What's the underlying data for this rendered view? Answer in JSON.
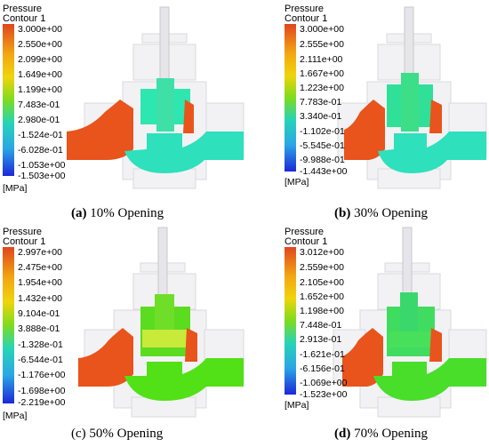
{
  "legend_colors": [
    "#e0461e",
    "#f07a1a",
    "#f2a812",
    "#f0d40a",
    "#c8e60e",
    "#7ddc1e",
    "#36d66a",
    "#26d4b6",
    "#2aa6e6",
    "#2656e6",
    "#1c28d8"
  ],
  "fluid": {
    "inlet": "#e8541c",
    "outlet_a": "#2ee0bc",
    "outlet_b": "#2ee0bc",
    "outlet_c": "#52e016",
    "outlet_d": "#48de2a",
    "core_a": "#2ee6b0",
    "core_b": "#30e098",
    "core_c": "#5cdc20",
    "core_d": "#40dc60",
    "plug_c": "#c8ea3a",
    "plug_d": "#48e05a"
  },
  "panels": [
    {
      "legend_title": "Pressure",
      "legend_subtitle": "Contour 1",
      "ticks": [
        "3.000e+00",
        "2.550e+00",
        "2.099e+00",
        "1.649e+00",
        "1.199e+00",
        "7.483e-01",
        "2.980e-01",
        "-1.524e-01",
        "-6.028e-01",
        "-1.053e+00",
        "-1.503e+00"
      ],
      "unit": "[MPa]",
      "caption_letter": "(a)",
      "caption_text": " 10% Opening",
      "letter_bold": true
    },
    {
      "legend_title": "Pressure",
      "legend_subtitle": "Contour 1",
      "ticks": [
        "3.000e+00",
        "2.555e+00",
        "2.111e+00",
        "1.667e+00",
        "1.223e+00",
        "7.783e-01",
        "3.340e-01",
        "-1.102e-01",
        "-5.545e-01",
        "-9.988e-01",
        "-1.443e+00"
      ],
      "unit": "[MPa]",
      "caption_letter": "(b)",
      "caption_text": " 30% Opening",
      "letter_bold": true
    },
    {
      "legend_title": "Pressure",
      "legend_subtitle": "Contour 1",
      "ticks": [
        "2.997e+00",
        "2.475e+00",
        "1.954e+00",
        "1.432e+00",
        "9.104e-01",
        "3.888e-01",
        "-1.328e-01",
        "-6.544e-01",
        "-1.176e+00",
        "-1.698e+00",
        "-2.219e+00"
      ],
      "unit": "[MPa]",
      "caption_letter": "(c)",
      "caption_text": " 50% Opening",
      "letter_bold": false
    },
    {
      "legend_title": "Pressure",
      "legend_subtitle": "Contour 1",
      "ticks": [
        "3.012e+00",
        "2.559e+00",
        "2.105e+00",
        "1.652e+00",
        "1.198e+00",
        "7.448e-01",
        "2.913e-01",
        "-1.621e-01",
        "-6.156e-01",
        "-1.069e+00",
        "-1.523e+00"
      ],
      "unit": "[MPa]",
      "caption_letter": "(d)",
      "caption_text": " 70% Opening",
      "letter_bold": true
    }
  ]
}
